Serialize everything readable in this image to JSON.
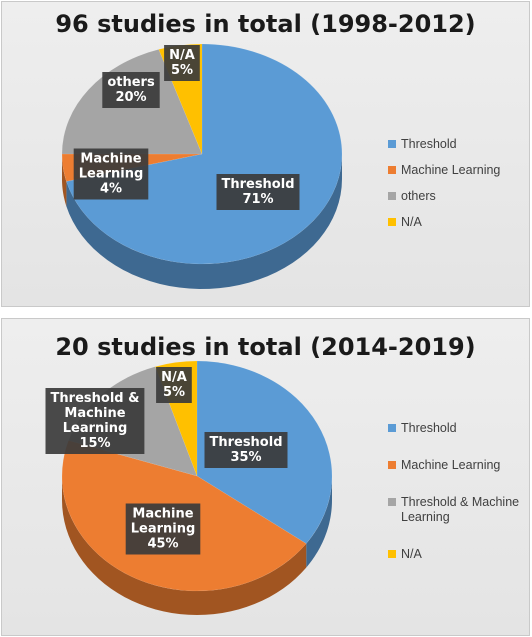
{
  "colors": {
    "threshold": "#5b9bd5",
    "machine_learning": "#ed7d31",
    "others": "#a5a5a5",
    "na": "#ffc000"
  },
  "chart_data": [
    {
      "type": "pie",
      "title": "96 studies in total (1998-2012)",
      "categories": [
        "Threshold",
        "Machine Learning",
        "others",
        "N/A"
      ],
      "values": [
        71,
        4,
        20,
        5
      ],
      "data_labels": [
        [
          "Threshold",
          "71%"
        ],
        [
          "Machine",
          "Learning",
          "4%"
        ],
        [
          "others",
          "20%"
        ],
        [
          "N/A",
          "5%"
        ]
      ],
      "legend": {
        "position": "right",
        "entries": [
          [
            "Threshold"
          ],
          [
            "Machine Learning"
          ],
          [
            "others"
          ],
          [
            "N/A"
          ]
        ]
      }
    },
    {
      "type": "pie",
      "title": "20 studies in total (2014-2019)",
      "categories": [
        "Threshold",
        "Machine Learning",
        "Threshold & Machine Learning",
        "N/A"
      ],
      "values": [
        35,
        45,
        15,
        5
      ],
      "data_labels": [
        [
          "Threshold",
          "35%"
        ],
        [
          "Machine",
          "Learning",
          "45%"
        ],
        [
          "Threshold &",
          "Machine",
          "Learning",
          "15%"
        ],
        [
          "N/A",
          "5%"
        ]
      ],
      "legend": {
        "position": "right",
        "entries": [
          [
            "Threshold"
          ],
          [
            "Machine Learning"
          ],
          [
            "Threshold & Machine",
            "Learning"
          ],
          [
            "N/A"
          ]
        ]
      }
    }
  ]
}
